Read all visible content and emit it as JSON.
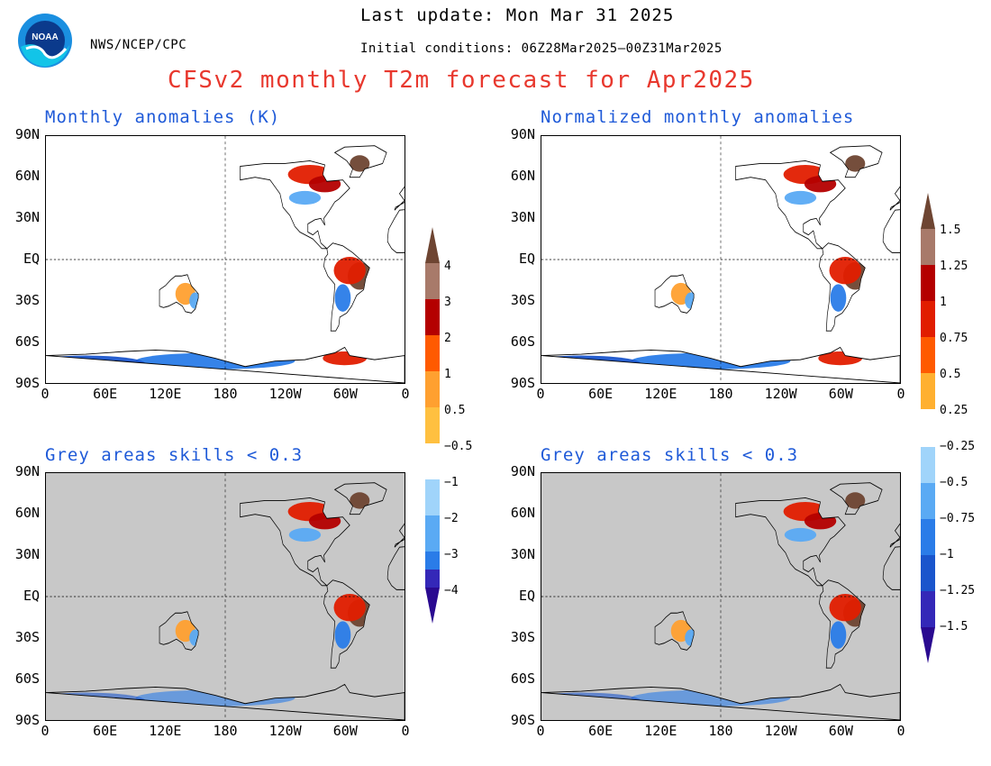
{
  "header": {
    "org": "NWS/NCEP/CPC",
    "last_update": "Last update: Mon Mar 31 2025",
    "initial_conditions": "Initial conditions: 06Z28Mar2025—00Z31Mar2025",
    "title": "CFSv2 monthly T2m forecast for Apr2025"
  },
  "panels": [
    {
      "title": "Monthly anomalies (K)",
      "skill_mask": false
    },
    {
      "title": "Normalized monthly anomalies",
      "skill_mask": false
    },
    {
      "title": "Grey areas skills < 0.3",
      "skill_mask": true
    },
    {
      "title": "Grey areas skills < 0.3",
      "skill_mask": true
    }
  ],
  "axes": {
    "lat_labels": [
      "90N",
      "60N",
      "30N",
      "EQ",
      "30S",
      "60S",
      "90S"
    ],
    "lon_labels": [
      "0",
      "60E",
      "120E",
      "180",
      "120W",
      "60W",
      "0"
    ]
  },
  "colorbars": [
    {
      "units": "K",
      "labels": [
        "4",
        "3",
        "2",
        "1",
        "0.5",
        "−0.5",
        "−1",
        "−2",
        "−3",
        "−4"
      ]
    },
    {
      "units": "normalized",
      "labels": [
        "1.5",
        "1.25",
        "1",
        "0.75",
        "0.5",
        "0.25",
        "−0.25",
        "−0.5",
        "−0.75",
        "−1",
        "−1.25",
        "−1.5"
      ]
    }
  ],
  "colors": {
    "warm": [
      "#6e4532",
      "#a87a6a",
      "#b40000",
      "#e11d00",
      "#ff5a00",
      "#ffa030"
    ],
    "cool": [
      "#a0d4fa",
      "#5aaaf4",
      "#2a7ce8",
      "#1a55cc",
      "#3428b8",
      "#2a0a90"
    ],
    "neutral": "#ffffff",
    "mask": "#c8c8c8",
    "title": "#e8382e",
    "panel_title": "#1f5ad8"
  }
}
